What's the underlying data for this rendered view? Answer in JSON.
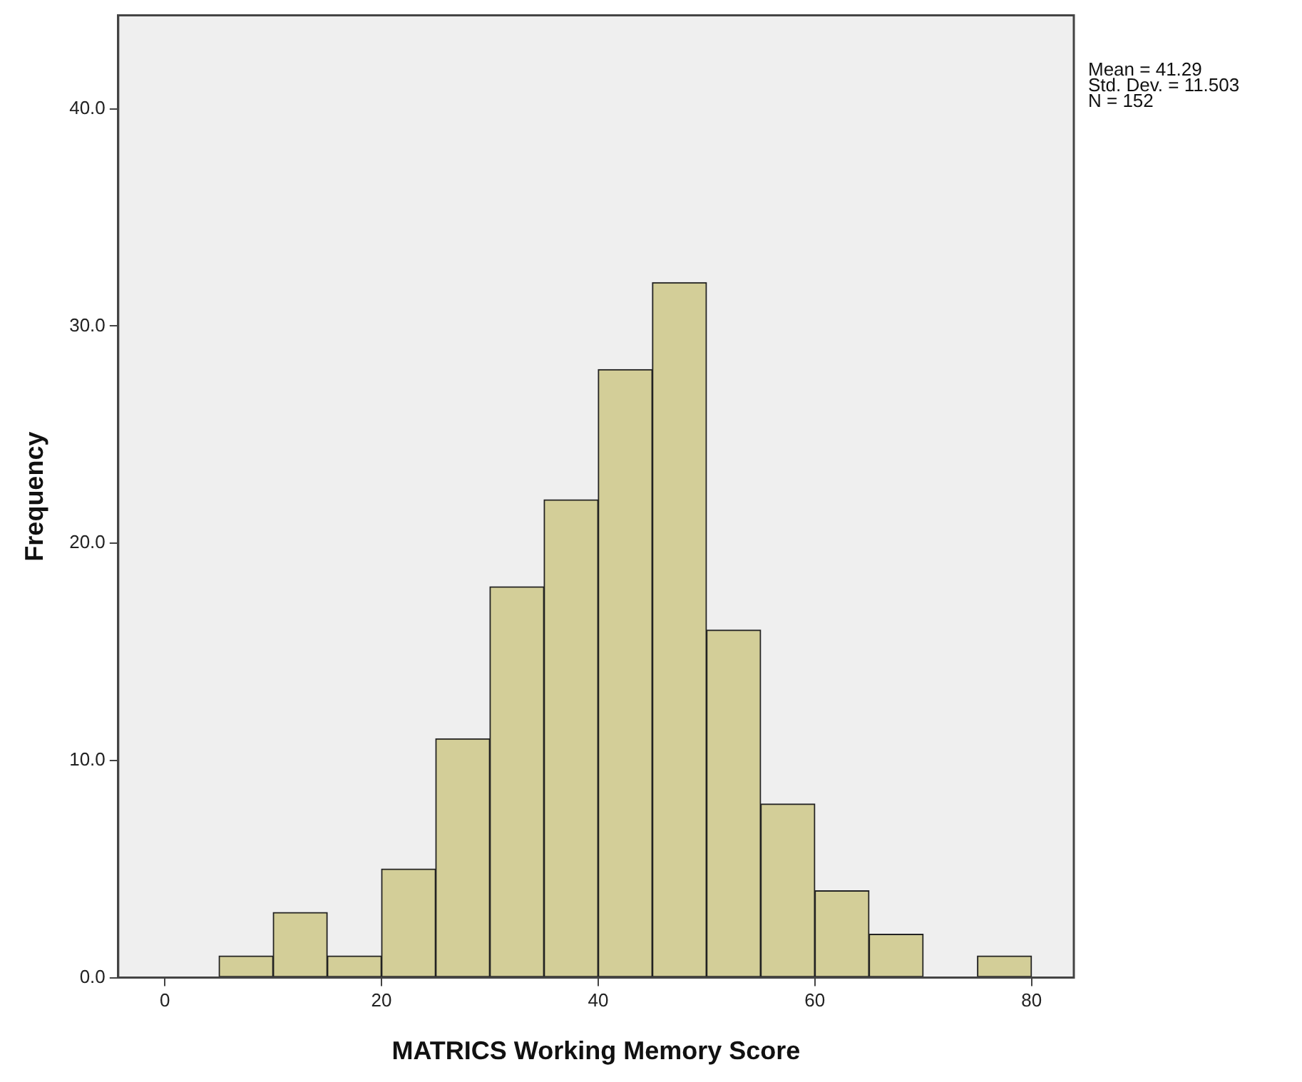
{
  "chart_data": {
    "type": "histogram",
    "xlabel": "MATRICS Working Memory Score",
    "ylabel": "Frequency",
    "bins": [
      5,
      10,
      15,
      20,
      25,
      30,
      35,
      40,
      45,
      50,
      55,
      60,
      65,
      70,
      75,
      80
    ],
    "values": [
      1,
      3,
      1,
      5,
      11,
      18,
      22,
      28,
      32,
      16,
      8,
      4,
      2,
      0,
      1
    ],
    "color": "#d3ce98",
    "xlim": [
      -4.3,
      83.9
    ],
    "xticks": [
      0,
      20,
      40,
      60,
      80
    ],
    "ylim": [
      0,
      44.3
    ],
    "yticks": [
      {
        "value": 0,
        "label": "0.0"
      },
      {
        "value": 10,
        "label": "10.0"
      },
      {
        "value": 20,
        "label": "20.0"
      },
      {
        "value": 30,
        "label": "30.0"
      },
      {
        "value": 40,
        "label": "40.0"
      }
    ],
    "legend": false,
    "annotations": [
      "Mean = 41.29",
      "Std. Dev. = 11.503",
      "N = 152"
    ]
  }
}
